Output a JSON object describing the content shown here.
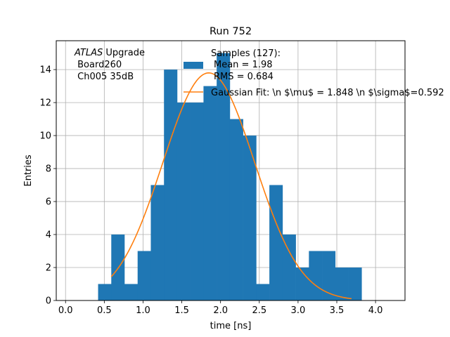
{
  "chart_data": {
    "type": "bar",
    "title": "Run 752",
    "xlabel": "time [ns]",
    "ylabel": "Entries",
    "xlim": [
      -0.12,
      4.38
    ],
    "ylim": [
      0,
      15.75
    ],
    "grid": true,
    "xticks": [
      "0.0",
      "0.5",
      "1.0",
      "1.5",
      "2.0",
      "2.5",
      "3.0",
      "3.5",
      "4.0"
    ],
    "yticks": [
      "0",
      "2",
      "4",
      "6",
      "8",
      "10",
      "12",
      "14"
    ],
    "histogram": {
      "name": "Samples (127):",
      "stats": [
        "Mean = 1.98",
        "RMS = 0.684"
      ],
      "color": "#1f77b4",
      "bins": [
        {
          "x0": 0.42,
          "x1": 0.59,
          "count": 1
        },
        {
          "x0": 0.59,
          "x1": 0.76,
          "count": 4
        },
        {
          "x0": 0.76,
          "x1": 0.93,
          "count": 1
        },
        {
          "x0": 0.93,
          "x1": 1.1,
          "count": 3
        },
        {
          "x0": 1.1,
          "x1": 1.27,
          "count": 7
        },
        {
          "x0": 1.27,
          "x1": 1.44,
          "count": 14
        },
        {
          "x0": 1.44,
          "x1": 1.61,
          "count": 12
        },
        {
          "x0": 1.61,
          "x1": 1.78,
          "count": 12
        },
        {
          "x0": 1.78,
          "x1": 1.95,
          "count": 13
        },
        {
          "x0": 1.95,
          "x1": 2.12,
          "count": 15
        },
        {
          "x0": 2.12,
          "x1": 2.29,
          "count": 11
        },
        {
          "x0": 2.29,
          "x1": 2.46,
          "count": 10
        },
        {
          "x0": 2.46,
          "x1": 2.63,
          "count": 1
        },
        {
          "x0": 2.63,
          "x1": 2.8,
          "count": 7
        },
        {
          "x0": 2.8,
          "x1": 2.97,
          "count": 4
        },
        {
          "x0": 2.97,
          "x1": 3.14,
          "count": 2
        },
        {
          "x0": 3.14,
          "x1": 3.31,
          "count": 3
        },
        {
          "x0": 3.31,
          "x1": 3.48,
          "count": 3
        },
        {
          "x0": 3.48,
          "x1": 3.65,
          "count": 2
        },
        {
          "x0": 3.65,
          "x1": 3.82,
          "count": 2
        }
      ]
    },
    "fit": {
      "name": "Gaussian Fit: \\n $\\mu$ = 1.848 \\n $\\sigma$=0.592",
      "color": "#ff7f0e",
      "amplitude": 13.8,
      "mu": 1.848,
      "sigma": 0.592,
      "x_start": 0.59,
      "x_end": 3.69
    },
    "annotation": {
      "line1_italic": "ATLAS",
      "line1_rest": " Upgrade",
      "line2": " Board260",
      "line3": " Ch005 35dB"
    },
    "legend_position": "top-center"
  }
}
